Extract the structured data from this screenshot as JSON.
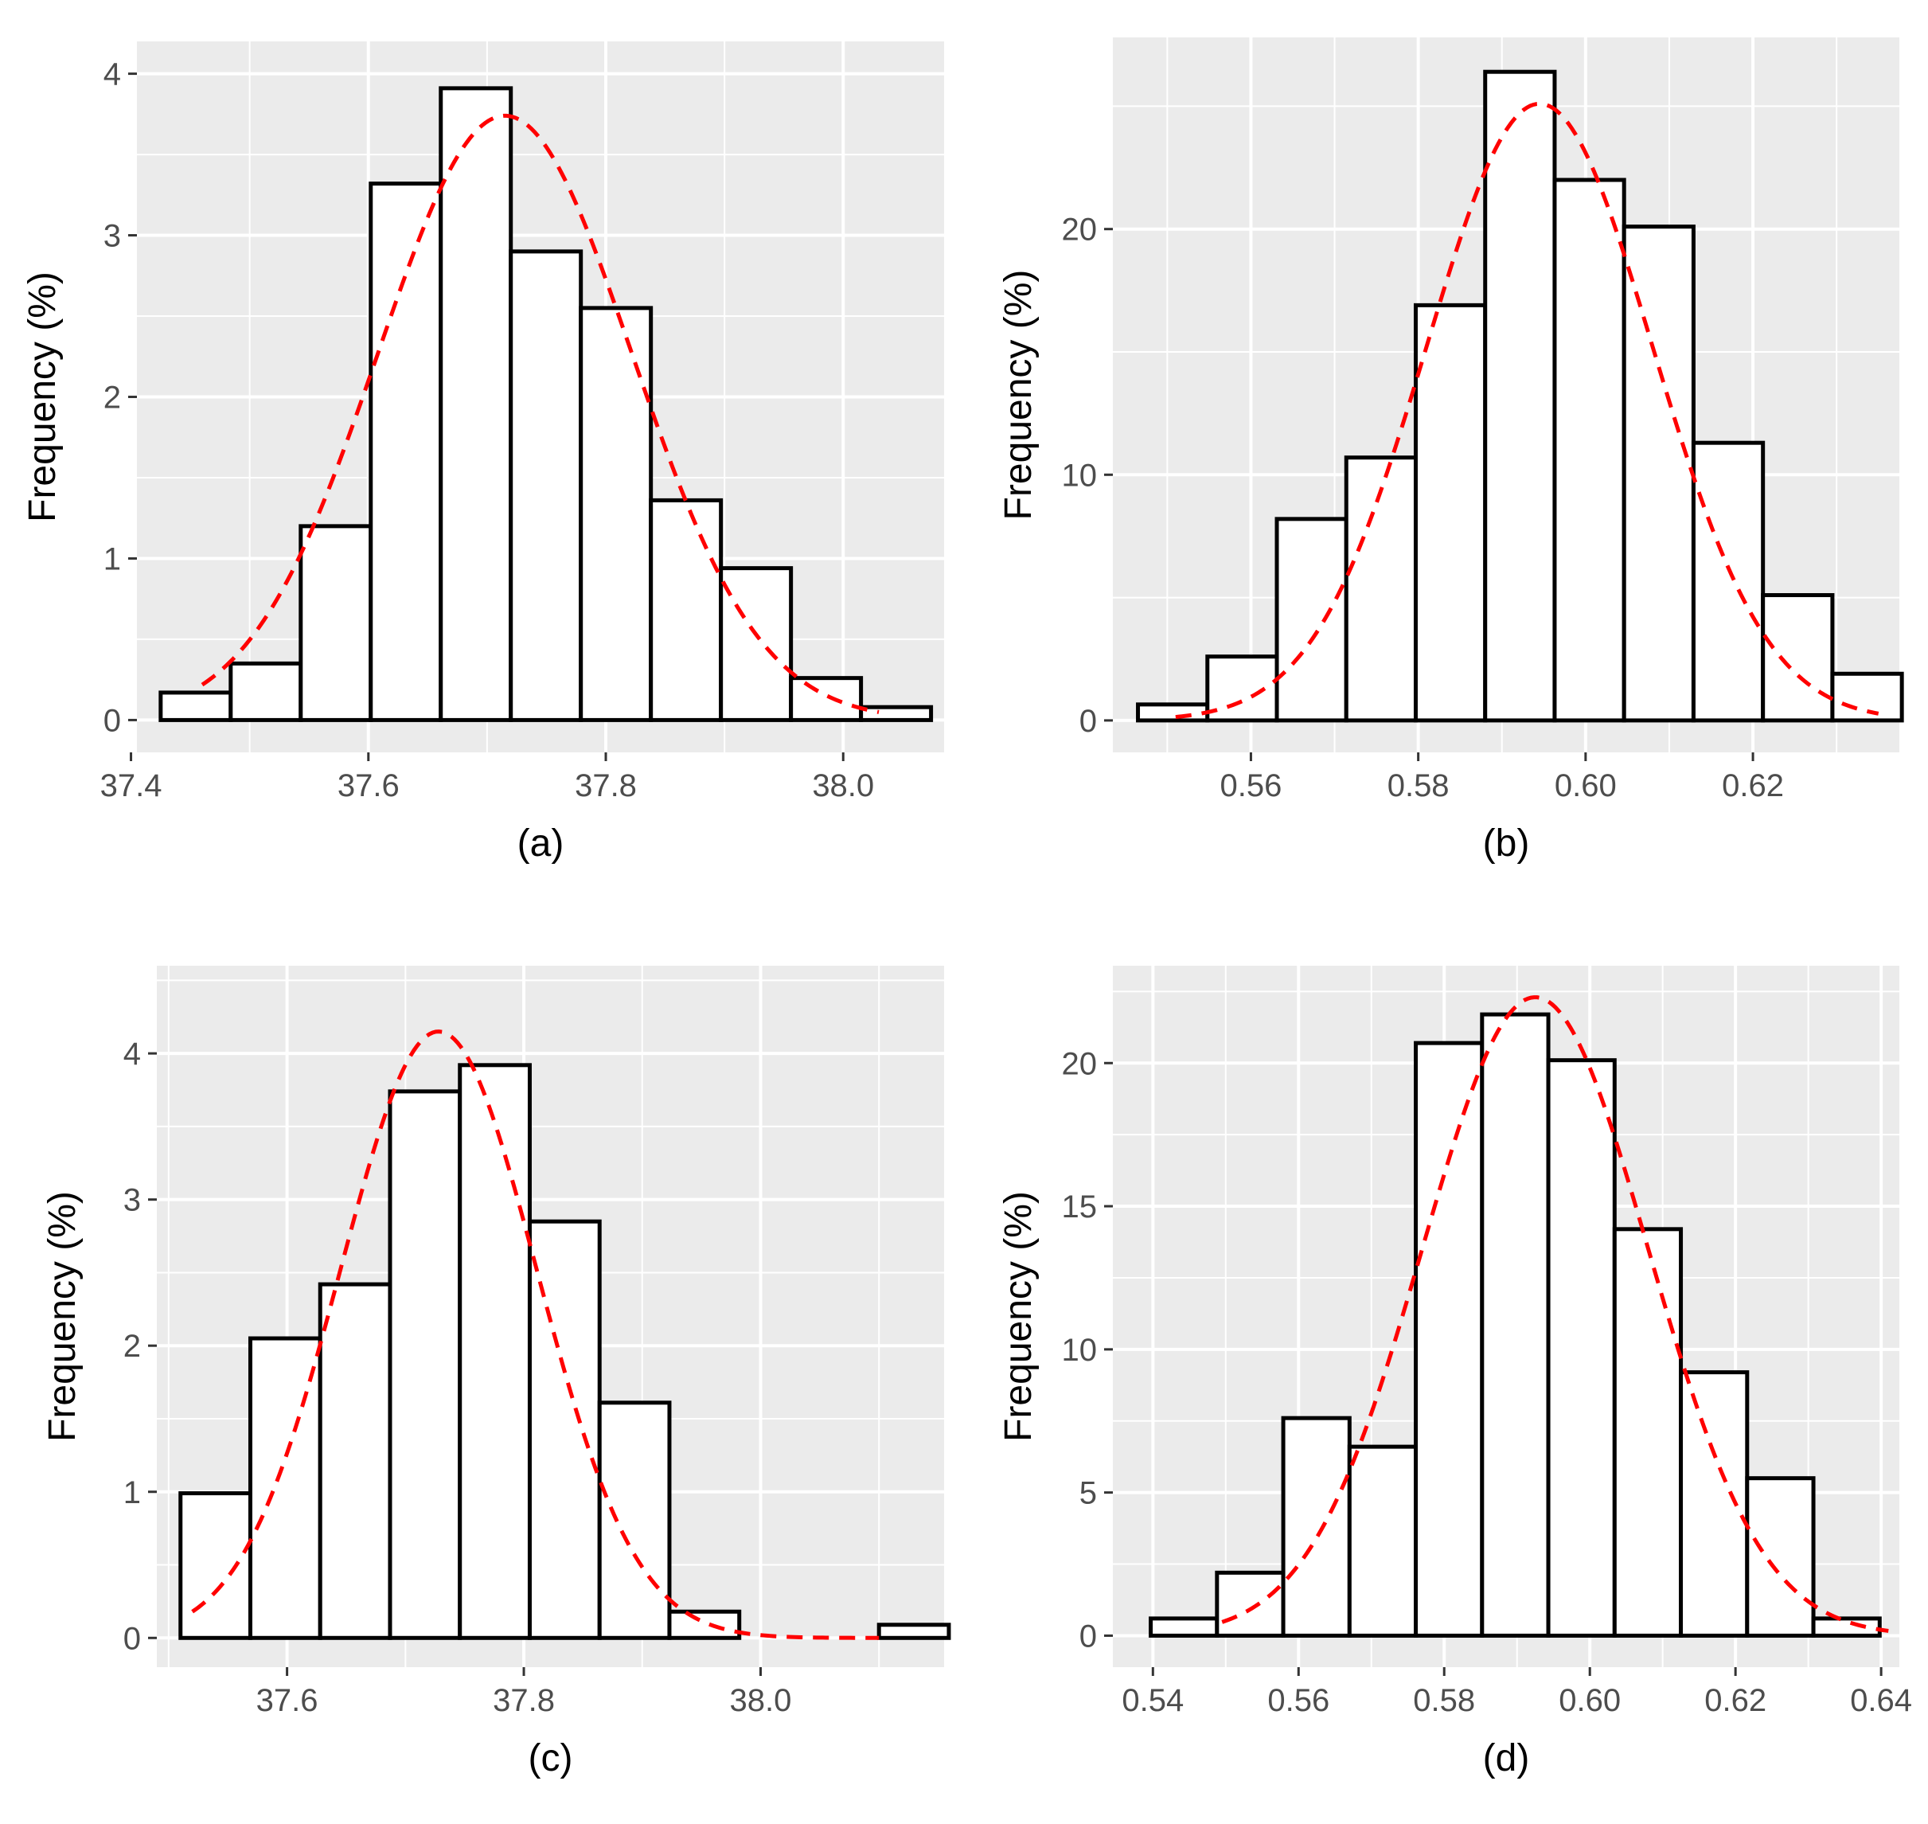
{
  "chart_data": [
    {
      "type": "bar",
      "subtype": "histogram",
      "caption": "(a)",
      "ylabel": "Frequency (%)",
      "xlabel": "",
      "xlim": [
        37.405,
        38.085
      ],
      "ylim": [
        -0.2,
        4.2
      ],
      "xticks": [
        37.4,
        37.6,
        37.8,
        38.0
      ],
      "xtick_labels": [
        "37.4",
        "37.6",
        "37.8",
        "38.0"
      ],
      "yticks": [
        0,
        1,
        2,
        3,
        4
      ],
      "ytick_labels": [
        "0",
        "1",
        "2",
        "3",
        "4"
      ],
      "bin_edges": [
        37.425,
        37.484,
        37.543,
        37.602,
        37.661,
        37.72,
        37.779,
        37.838,
        37.897,
        37.956,
        38.015,
        38.074
      ],
      "values": [
        0.17,
        0.35,
        1.2,
        3.32,
        3.91,
        2.9,
        2.55,
        1.36,
        0.94,
        0.26,
        0.08
      ],
      "fit_curve": {
        "type": "normal",
        "mean": 37.715,
        "sd": 0.107,
        "peak": 3.74,
        "x_range": [
          37.46,
          38.03
        ],
        "color": "#ff0000",
        "style": "dashed"
      }
    },
    {
      "type": "bar",
      "subtype": "histogram",
      "caption": "(b)",
      "ylabel": "Frequency (%)",
      "xlabel": "",
      "xlim": [
        0.5435,
        0.6375
      ],
      "ylim": [
        -1.3,
        27.8
      ],
      "xticks": [
        0.56,
        0.58,
        0.6,
        0.62
      ],
      "xtick_labels": [
        "0.56",
        "0.58",
        "0.60",
        "0.62"
      ],
      "yticks": [
        0,
        10,
        20
      ],
      "ytick_labels": [
        "0",
        "10",
        "20"
      ],
      "bin_edges": [
        0.5465,
        0.5548,
        0.5631,
        0.5714,
        0.5797,
        0.588,
        0.5963,
        0.6046,
        0.6129,
        0.6212,
        0.6295,
        0.6378
      ],
      "values": [
        0.65,
        2.6,
        8.2,
        10.7,
        16.9,
        26.4,
        22.0,
        20.1,
        11.3,
        5.1,
        1.9
      ],
      "fit_curve": {
        "type": "normal",
        "mean": 0.5945,
        "sd": 0.0135,
        "peak": 25.1,
        "x_range": [
          0.551,
          0.635
        ],
        "color": "#ff0000",
        "style": "dashed"
      }
    },
    {
      "type": "bar",
      "subtype": "histogram",
      "caption": "(c)",
      "ylabel": "Frequency (%)",
      "xlabel": "",
      "xlim": [
        37.49,
        38.155
      ],
      "ylim": [
        -0.2,
        4.6
      ],
      "xticks": [
        37.6,
        37.8,
        38.0
      ],
      "xtick_labels": [
        "37.6",
        "37.8",
        "38.0"
      ],
      "yticks": [
        0,
        1,
        2,
        3,
        4
      ],
      "ytick_labels": [
        "0",
        "1",
        "2",
        "3",
        "4"
      ],
      "bin_edges": [
        37.51,
        37.569,
        37.628,
        37.687,
        37.746,
        37.805,
        37.864,
        37.923,
        37.982,
        38.041,
        38.1,
        38.159
      ],
      "values": [
        0.99,
        2.05,
        2.42,
        3.74,
        3.92,
        2.85,
        1.61,
        0.18,
        0.0,
        0.0,
        0.09
      ],
      "fit_curve": {
        "type": "normal",
        "mean": 37.728,
        "sd": 0.083,
        "peak": 4.15,
        "x_range": [
          37.52,
          38.1
        ],
        "color": "#ff0000",
        "style": "dashed"
      }
    },
    {
      "type": "bar",
      "subtype": "histogram",
      "caption": "(d)",
      "ylabel": "Frequency (%)",
      "xlabel": "",
      "xlim": [
        0.5345,
        0.6425
      ],
      "ylim": [
        -1.1,
        23.4
      ],
      "xticks": [
        0.54,
        0.56,
        0.58,
        0.6,
        0.62,
        0.64
      ],
      "xtick_labels": [
        "0.54",
        "0.56",
        "0.58",
        "0.60",
        "0.62",
        "0.64"
      ],
      "yticks": [
        0,
        5,
        10,
        15,
        20
      ],
      "ytick_labels": [
        "0",
        "5",
        "10",
        "15",
        "20"
      ],
      "bin_edges": [
        0.5397,
        0.5488,
        0.5579,
        0.567,
        0.5761,
        0.5852,
        0.5943,
        0.6034,
        0.6125,
        0.6216,
        0.6307,
        0.6398
      ],
      "values": [
        0.6,
        2.2,
        7.6,
        6.6,
        20.7,
        21.7,
        20.1,
        14.2,
        9.2,
        5.5,
        0.6
      ],
      "fit_curve": {
        "type": "normal",
        "mean": 0.5925,
        "sd": 0.0155,
        "peak": 22.3,
        "x_range": [
          0.5495,
          0.641
        ],
        "color": "#ff0000",
        "style": "dashed"
      }
    }
  ]
}
